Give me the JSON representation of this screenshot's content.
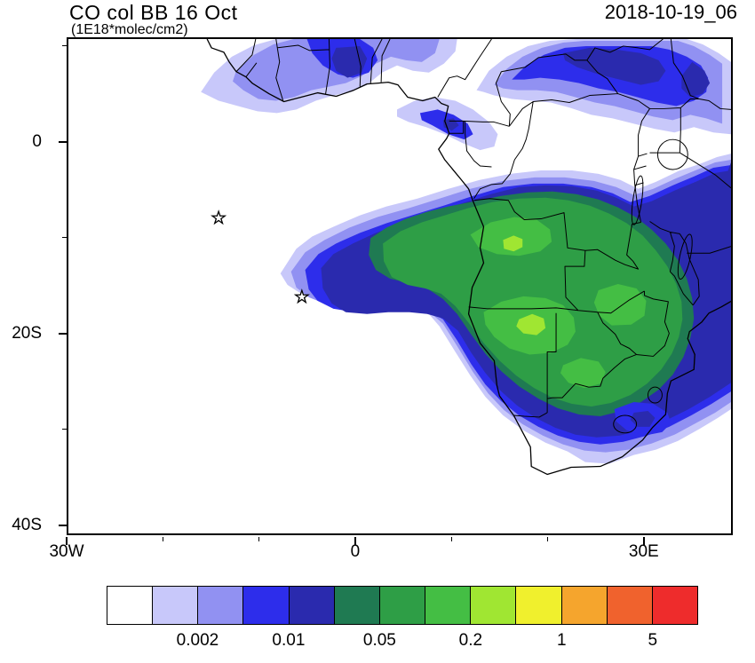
{
  "header": {
    "title": "CO col BB 16 Oct",
    "subtitle": "(1E18*molec/cm2)",
    "timestamp": "2018-10-19_06"
  },
  "axes": {
    "x": {
      "major": [
        {
          "lon": -30,
          "label": "30W"
        },
        {
          "lon": 0,
          "label": "0"
        },
        {
          "lon": 30,
          "label": "30E"
        }
      ],
      "minor_lons": [
        -20,
        -10,
        10,
        20
      ]
    },
    "y": {
      "major": [
        {
          "lat": 0,
          "label": "0"
        },
        {
          "lat": -20,
          "label": "20S"
        },
        {
          "lat": -40,
          "label": "40S"
        }
      ],
      "minor_lats": [
        10,
        -10,
        -30
      ]
    }
  },
  "colorbar": {
    "colors": [
      "#FFFFFF",
      "#C8C8FA",
      "#9191F2",
      "#2D2DEB",
      "#2A2AAE",
      "#1F7A52",
      "#2E9E46",
      "#44BE44",
      "#A0E632",
      "#F0F02D",
      "#F5A52D",
      "#F0622D",
      "#EE2C2C"
    ],
    "labels": [
      {
        "text": "0.002",
        "boundary": 2
      },
      {
        "text": "0.01",
        "boundary": 4
      },
      {
        "text": "0.05",
        "boundary": 6
      },
      {
        "text": "0.2",
        "boundary": 8
      },
      {
        "text": "1",
        "boundary": 10
      },
      {
        "text": "5",
        "boundary": 12
      }
    ]
  },
  "markers": {
    "stars": [
      {
        "lon": -14.3,
        "lat": -7.9
      },
      {
        "lon": -5.6,
        "lat": -16.2
      }
    ]
  },
  "chart_data": {
    "type": "heatmap",
    "subtype": "filled-contour-map",
    "title": "CO col BB 16 Oct",
    "units": "1E18*molec/cm2",
    "timestamp": "2018-10-19_06",
    "region": "Africa and tropical Atlantic",
    "x": {
      "label": "longitude",
      "tick_labels": [
        "30W",
        "0",
        "30E"
      ],
      "range_deg": [
        -30,
        39.2
      ]
    },
    "y": {
      "label": "latitude",
      "tick_labels": [
        "0",
        "20S",
        "40S"
      ],
      "range_deg": [
        -41,
        10.9
      ]
    },
    "colorbar_tick_labels": [
      "0.002",
      "0.01",
      "0.05",
      "0.2",
      "1",
      "5"
    ],
    "legend_position": "bottom",
    "markers": [
      {
        "type": "star",
        "lon": -14.3,
        "lat": -7.9
      },
      {
        "type": "star",
        "lon": -5.6,
        "lat": -16.2
      }
    ]
  }
}
